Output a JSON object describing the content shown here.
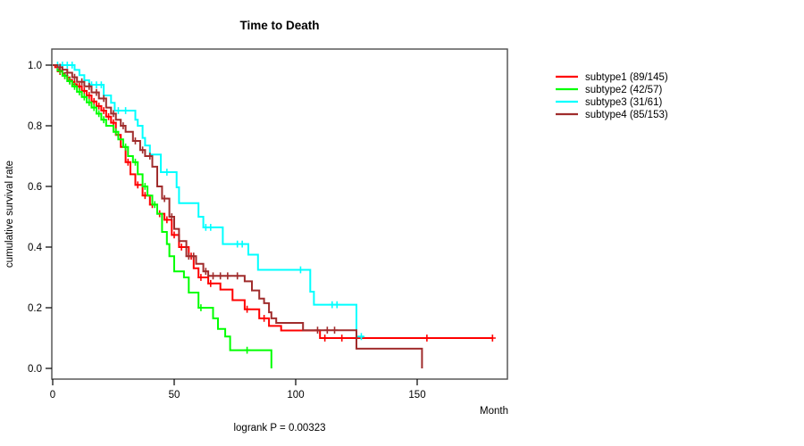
{
  "title": "Time to Death",
  "y_axis": {
    "label": "cumulative survival rate"
  },
  "x_axis": {
    "label": "Month"
  },
  "footer": {
    "logrank_label": "logrank P = 0.00323"
  },
  "legend": {
    "items": [
      {
        "label": "subtype1 (89/145)",
        "color": "#ff0000"
      },
      {
        "label": "subtype2 (42/57)",
        "color": "#00ff00"
      },
      {
        "label": "subtype3 (31/61)",
        "color": "#00ffff"
      },
      {
        "label": "subtype4 (85/153)",
        "color": "#a02c2c"
      }
    ]
  },
  "chart_data": {
    "type": "line",
    "variant": "kaplan-meier-step",
    "title": "Time to Death",
    "xlabel": "Month",
    "ylabel": "cumulative survival rate",
    "annotation": "logrank P = 0.00323",
    "xlim": [
      0,
      187
    ],
    "ylim": [
      0,
      1
    ],
    "grid": false,
    "legend_position": "right-outside",
    "x_ticks": [
      {
        "v": 0,
        "label": "0"
      },
      {
        "v": 50,
        "label": "50"
      },
      {
        "v": 100,
        "label": "100"
      },
      {
        "v": 150,
        "label": "150"
      }
    ],
    "y_ticks": [
      {
        "v": 0.0,
        "label": "0.0"
      },
      {
        "v": 0.2,
        "label": "0.2"
      },
      {
        "v": 0.4,
        "label": "0.4"
      },
      {
        "v": 0.6,
        "label": "0.6"
      },
      {
        "v": 0.8,
        "label": "0.8"
      },
      {
        "v": 1.0,
        "label": "1.0"
      }
    ],
    "series": [
      {
        "name": "subtype1 (89/145)",
        "color": "#ff0000",
        "points": [
          [
            0,
            1
          ],
          [
            1,
            0.993
          ],
          [
            2,
            0.986
          ],
          [
            3,
            0.979
          ],
          [
            4,
            0.972
          ],
          [
            5,
            0.965
          ],
          [
            6,
            0.958
          ],
          [
            7,
            0.951
          ],
          [
            8,
            0.944
          ],
          [
            9,
            0.937
          ],
          [
            10,
            0.93
          ],
          [
            12,
            0.915
          ],
          [
            14,
            0.9
          ],
          [
            16,
            0.88
          ],
          [
            18,
            0.865
          ],
          [
            20,
            0.85
          ],
          [
            22,
            0.83
          ],
          [
            24,
            0.81
          ],
          [
            26,
            0.77
          ],
          [
            28,
            0.73
          ],
          [
            30,
            0.68
          ],
          [
            32,
            0.64
          ],
          [
            34,
            0.605
          ],
          [
            37,
            0.57
          ],
          [
            40,
            0.54
          ],
          [
            43,
            0.51
          ],
          [
            46,
            0.49
          ],
          [
            49,
            0.44
          ],
          [
            52,
            0.4
          ],
          [
            56,
            0.37
          ],
          [
            58,
            0.33
          ],
          [
            60,
            0.3
          ],
          [
            64,
            0.28
          ],
          [
            69,
            0.26
          ],
          [
            74,
            0.225
          ],
          [
            79,
            0.195
          ],
          [
            85,
            0.165
          ],
          [
            89,
            0.14
          ],
          [
            94,
            0.125
          ],
          [
            110,
            0.1
          ],
          [
            181,
            0.1
          ]
        ],
        "censor_times": [
          3,
          5,
          7,
          9,
          11,
          13,
          15,
          17,
          19,
          21,
          23,
          25,
          27,
          31,
          35,
          38,
          41,
          44,
          47,
          50,
          53,
          57,
          61,
          65,
          80,
          87,
          112,
          119,
          154,
          181
        ]
      },
      {
        "name": "subtype2 (42/57)",
        "color": "#00ff00",
        "points": [
          [
            0,
            1
          ],
          [
            2,
            0.982
          ],
          [
            4,
            0.965
          ],
          [
            6,
            0.947
          ],
          [
            8,
            0.93
          ],
          [
            10,
            0.912
          ],
          [
            12,
            0.895
          ],
          [
            14,
            0.877
          ],
          [
            16,
            0.86
          ],
          [
            18,
            0.84
          ],
          [
            20,
            0.82
          ],
          [
            22,
            0.8
          ],
          [
            25,
            0.78
          ],
          [
            27,
            0.755
          ],
          [
            29,
            0.73
          ],
          [
            31,
            0.7
          ],
          [
            33,
            0.68
          ],
          [
            35,
            0.64
          ],
          [
            37,
            0.6
          ],
          [
            39,
            0.57
          ],
          [
            41,
            0.54
          ],
          [
            43,
            0.51
          ],
          [
            45,
            0.45
          ],
          [
            47,
            0.41
          ],
          [
            48,
            0.37
          ],
          [
            50,
            0.32
          ],
          [
            54,
            0.3
          ],
          [
            56,
            0.25
          ],
          [
            60,
            0.2
          ],
          [
            66,
            0.165
          ],
          [
            68,
            0.13
          ],
          [
            71,
            0.105
          ],
          [
            73,
            0.06
          ],
          [
            90,
            0
          ]
        ],
        "censor_times": [
          3,
          5,
          7,
          9,
          11,
          13,
          15,
          17,
          19,
          21,
          26,
          30,
          34,
          38,
          42,
          61,
          80
        ]
      },
      {
        "name": "subtype3 (31/61)",
        "color": "#00ffff",
        "points": [
          [
            0,
            1
          ],
          [
            9,
            0.984
          ],
          [
            11,
            0.967
          ],
          [
            13,
            0.95
          ],
          [
            15,
            0.935
          ],
          [
            21,
            0.9
          ],
          [
            24,
            0.876
          ],
          [
            25.5,
            0.85
          ],
          [
            34,
            0.82
          ],
          [
            35,
            0.8
          ],
          [
            37,
            0.76
          ],
          [
            38,
            0.735
          ],
          [
            40,
            0.705
          ],
          [
            44.5,
            0.647
          ],
          [
            51,
            0.597
          ],
          [
            52,
            0.545
          ],
          [
            60,
            0.5
          ],
          [
            62,
            0.465
          ],
          [
            70,
            0.41
          ],
          [
            80.5,
            0.375
          ],
          [
            84.5,
            0.325
          ],
          [
            106,
            0.253
          ],
          [
            107.5,
            0.21
          ],
          [
            125,
            0.105
          ],
          [
            128,
            0.105
          ]
        ],
        "censor_times": [
          2,
          4,
          6,
          8,
          16,
          18,
          20,
          27,
          30,
          47,
          63,
          65,
          76,
          78,
          102,
          115,
          117,
          127
        ]
      },
      {
        "name": "subtype4 (85/153)",
        "color": "#a02c2c",
        "points": [
          [
            0,
            1
          ],
          [
            2,
            0.993
          ],
          [
            4,
            0.985
          ],
          [
            6,
            0.975
          ],
          [
            8,
            0.96
          ],
          [
            10,
            0.945
          ],
          [
            13,
            0.93
          ],
          [
            16,
            0.91
          ],
          [
            19,
            0.89
          ],
          [
            22,
            0.86
          ],
          [
            24,
            0.84
          ],
          [
            26,
            0.82
          ],
          [
            28,
            0.8
          ],
          [
            30,
            0.78
          ],
          [
            33,
            0.75
          ],
          [
            36,
            0.72
          ],
          [
            38,
            0.7
          ],
          [
            41,
            0.665
          ],
          [
            43,
            0.6
          ],
          [
            45,
            0.56
          ],
          [
            48,
            0.5
          ],
          [
            50,
            0.46
          ],
          [
            52,
            0.42
          ],
          [
            55,
            0.37
          ],
          [
            59,
            0.345
          ],
          [
            62,
            0.32
          ],
          [
            64,
            0.305
          ],
          [
            79,
            0.287
          ],
          [
            82,
            0.257
          ],
          [
            85,
            0.23
          ],
          [
            87,
            0.215
          ],
          [
            89,
            0.185
          ],
          [
            90,
            0.165
          ],
          [
            92,
            0.15
          ],
          [
            103,
            0.126
          ],
          [
            125,
            0.065
          ],
          [
            152,
            0
          ]
        ],
        "censor_times": [
          3,
          6,
          9,
          12,
          15,
          18,
          21,
          25,
          29,
          34,
          37,
          40,
          46,
          49,
          56,
          58,
          63,
          66,
          69,
          72,
          76,
          109,
          113,
          116
        ]
      }
    ]
  }
}
